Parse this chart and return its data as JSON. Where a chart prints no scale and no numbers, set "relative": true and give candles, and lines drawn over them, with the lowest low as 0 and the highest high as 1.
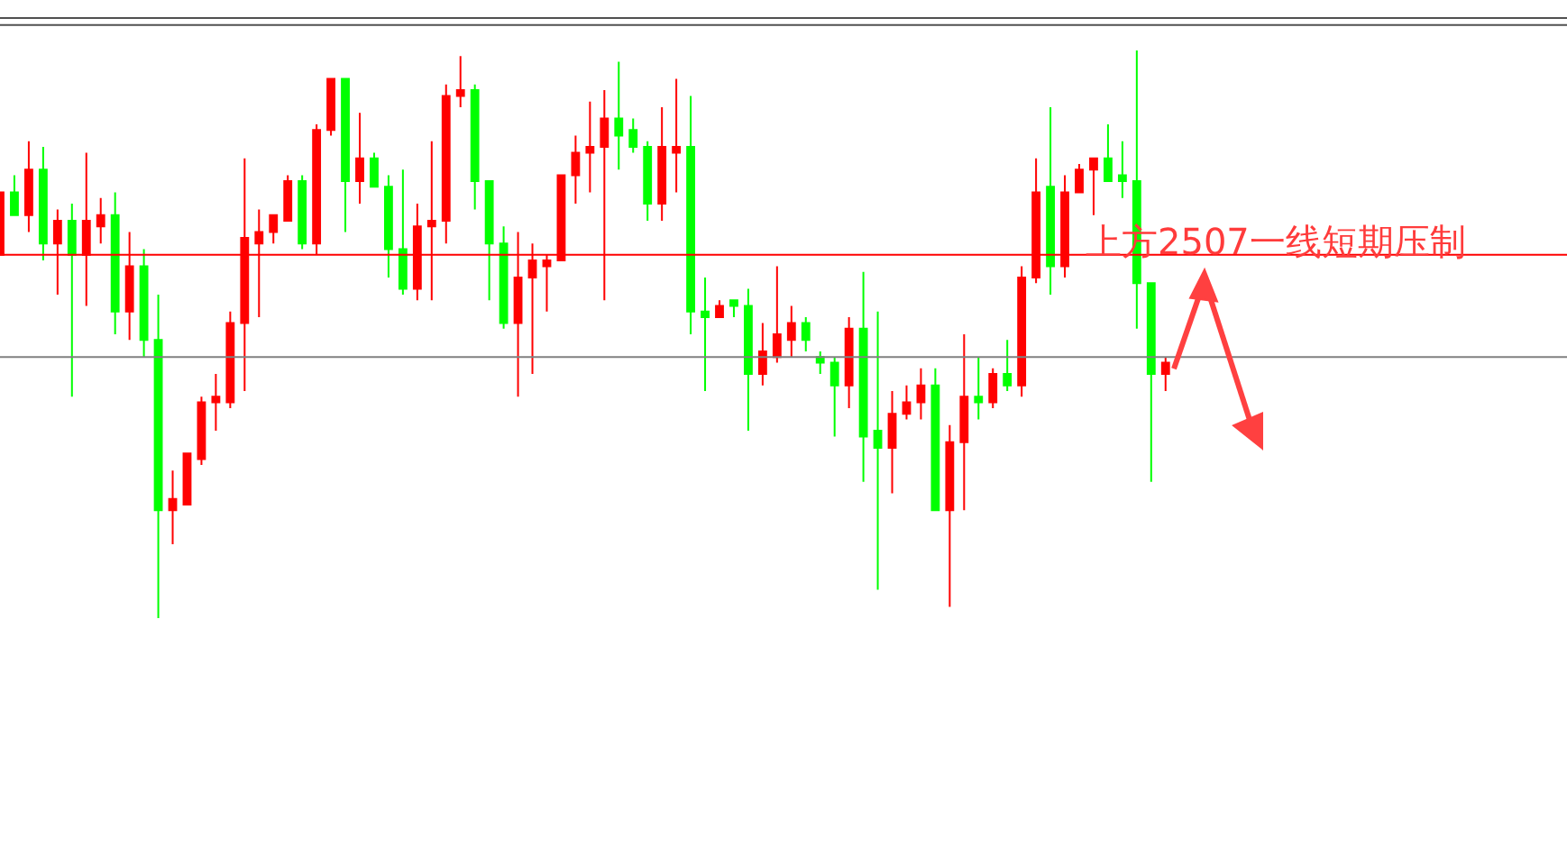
{
  "chart_data": {
    "type": "candlestick",
    "relative": true,
    "categories": [
      null,
      null,
      null,
      null,
      null,
      null,
      null,
      null,
      null,
      null,
      null,
      null,
      null,
      null,
      null,
      null,
      null,
      null,
      null,
      null,
      null,
      null,
      null,
      null,
      null,
      null,
      null,
      null,
      null,
      null,
      null,
      null,
      null,
      null,
      null,
      null,
      null,
      null,
      null,
      null,
      null,
      null,
      null,
      null,
      null,
      null,
      null,
      null,
      null,
      null,
      null,
      null,
      null,
      null,
      null,
      null,
      null,
      null,
      null,
      null,
      null,
      null,
      null,
      null,
      null,
      null,
      null,
      null,
      null,
      null,
      null,
      null,
      null,
      null,
      null,
      null,
      null,
      null,
      null,
      null,
      null,
      null
    ],
    "ohlc": [
      [
        0.64,
        0.75,
        0.64,
        0.75
      ],
      [
        0.75,
        0.78,
        0.71,
        0.71
      ],
      [
        0.71,
        0.84,
        0.68,
        0.79
      ],
      [
        0.79,
        0.83,
        0.63,
        0.66
      ],
      [
        0.66,
        0.72,
        0.57,
        0.7
      ],
      [
        0.7,
        0.73,
        0.39,
        0.64
      ],
      [
        0.64,
        0.82,
        0.55,
        0.7
      ],
      [
        0.69,
        0.74,
        0.66,
        0.71
      ],
      [
        0.71,
        0.75,
        0.5,
        0.54
      ],
      [
        0.54,
        0.68,
        0.49,
        0.62
      ],
      [
        0.62,
        0.65,
        0.46,
        0.49
      ],
      [
        0.49,
        0.57,
        0.0,
        0.19
      ],
      [
        0.19,
        0.26,
        0.13,
        0.21
      ],
      [
        0.2,
        0.29,
        0.2,
        0.29
      ],
      [
        0.28,
        0.39,
        0.27,
        0.38
      ],
      [
        0.38,
        0.43,
        0.33,
        0.39
      ],
      [
        0.38,
        0.54,
        0.37,
        0.52
      ],
      [
        0.52,
        0.81,
        0.4,
        0.67
      ],
      [
        0.66,
        0.72,
        0.53,
        0.68
      ],
      [
        0.68,
        0.71,
        0.66,
        0.71
      ],
      [
        0.7,
        0.78,
        0.7,
        0.77
      ],
      [
        0.77,
        0.78,
        0.65,
        0.66
      ],
      [
        0.66,
        0.87,
        0.64,
        0.86
      ],
      [
        0.86,
        0.95,
        0.85,
        0.95
      ],
      [
        0.95,
        0.95,
        0.68,
        0.77
      ],
      [
        0.77,
        0.89,
        0.73,
        0.81
      ],
      [
        0.81,
        0.82,
        0.76,
        0.76
      ],
      [
        0.76,
        0.78,
        0.6,
        0.65
      ],
      [
        0.65,
        0.79,
        0.57,
        0.58
      ],
      [
        0.58,
        0.73,
        0.56,
        0.69
      ],
      [
        0.69,
        0.84,
        0.56,
        0.7
      ],
      [
        0.7,
        0.94,
        0.66,
        0.92
      ],
      [
        0.92,
        0.99,
        0.9,
        0.93
      ],
      [
        0.93,
        0.94,
        0.72,
        0.77
      ],
      [
        0.77,
        0.77,
        0.56,
        0.66
      ],
      [
        0.66,
        0.69,
        0.51,
        0.52
      ],
      [
        0.52,
        0.68,
        0.39,
        0.6
      ],
      [
        0.6,
        0.66,
        0.43,
        0.63
      ],
      [
        0.62,
        0.64,
        0.54,
        0.63
      ],
      [
        0.63,
        0.78,
        0.63,
        0.78
      ],
      [
        0.78,
        0.85,
        0.73,
        0.82
      ],
      [
        0.82,
        0.91,
        0.75,
        0.83
      ],
      [
        0.83,
        0.93,
        0.56,
        0.88
      ],
      [
        0.88,
        0.98,
        0.79,
        0.85
      ],
      [
        0.86,
        0.88,
        0.82,
        0.83
      ],
      [
        0.83,
        0.84,
        0.7,
        0.73
      ],
      [
        0.73,
        0.9,
        0.7,
        0.83
      ],
      [
        0.82,
        0.95,
        0.75,
        0.83
      ],
      [
        0.83,
        0.92,
        0.5,
        0.54
      ],
      [
        0.54,
        0.6,
        0.4,
        0.53
      ],
      [
        0.53,
        0.56,
        0.53,
        0.55
      ],
      [
        0.56,
        0.56,
        0.53,
        0.55
      ],
      [
        0.55,
        0.58,
        0.33,
        0.43
      ],
      [
        0.43,
        0.52,
        0.41,
        0.47
      ],
      [
        0.46,
        0.62,
        0.45,
        0.5
      ],
      [
        0.49,
        0.55,
        0.46,
        0.52
      ],
      [
        0.52,
        0.53,
        0.47,
        0.49
      ],
      [
        0.46,
        0.47,
        0.43,
        0.45
      ],
      [
        0.45,
        0.46,
        0.32,
        0.41
      ],
      [
        0.41,
        0.53,
        0.37,
        0.51
      ],
      [
        0.51,
        0.61,
        0.24,
        0.32
      ],
      [
        0.33,
        0.54,
        0.05,
        0.3
      ],
      [
        0.3,
        0.4,
        0.22,
        0.36
      ],
      [
        0.36,
        0.41,
        0.35,
        0.38
      ],
      [
        0.38,
        0.44,
        0.35,
        0.41
      ],
      [
        0.41,
        0.44,
        0.19,
        0.19
      ],
      [
        0.19,
        0.34,
        0.02,
        0.31
      ],
      [
        0.31,
        0.5,
        0.19,
        0.39
      ],
      [
        0.39,
        0.46,
        0.35,
        0.38
      ],
      [
        0.38,
        0.44,
        0.37,
        0.43
      ],
      [
        0.43,
        0.49,
        0.4,
        0.41
      ],
      [
        0.41,
        0.62,
        0.39,
        0.6
      ],
      [
        0.6,
        0.81,
        0.59,
        0.75
      ],
      [
        0.76,
        0.9,
        0.57,
        0.62
      ],
      [
        0.62,
        0.78,
        0.6,
        0.75
      ],
      [
        0.75,
        0.8,
        0.75,
        0.79
      ],
      [
        0.79,
        0.81,
        0.71,
        0.81
      ],
      [
        0.81,
        0.87,
        0.77,
        0.77
      ],
      [
        0.78,
        0.84,
        0.74,
        0.77
      ],
      [
        0.77,
        1.0,
        0.51,
        0.59
      ],
      [
        0.59,
        0.59,
        0.24,
        0.43
      ],
      [
        0.43,
        0.46,
        0.4,
        0.45
      ]
    ],
    "colors": [
      "#ff0000",
      "#00ff00",
      "#ff0000",
      "#00ff00",
      "#ff0000",
      "#00ff00",
      "#ff0000",
      "#ff0000",
      "#00ff00",
      "#ff0000",
      "#00ff00",
      "#00ff00",
      "#ff0000",
      "#ff0000",
      "#ff0000",
      "#ff0000",
      "#ff0000",
      "#ff0000",
      "#ff0000",
      "#ff0000",
      "#ff0000",
      "#00ff00",
      "#ff0000",
      "#ff0000",
      "#00ff00",
      "#ff0000",
      "#00ff00",
      "#00ff00",
      "#00ff00",
      "#ff0000",
      "#ff0000",
      "#ff0000",
      "#ff0000",
      "#00ff00",
      "#00ff00",
      "#00ff00",
      "#ff0000",
      "#ff0000",
      "#ff0000",
      "#ff0000",
      "#ff0000",
      "#ff0000",
      "#ff0000",
      "#00ff00",
      "#00ff00",
      "#00ff00",
      "#ff0000",
      "#ff0000",
      "#00ff00",
      "#00ff00",
      "#ff0000",
      "#00ff00",
      "#00ff00",
      "#ff0000",
      "#ff0000",
      "#ff0000",
      "#00ff00",
      "#00ff00",
      "#00ff00",
      "#ff0000",
      "#00ff00",
      "#00ff00",
      "#ff0000",
      "#ff0000",
      "#ff0000",
      "#00ff00",
      "#ff0000",
      "#ff0000",
      "#00ff00",
      "#ff0000",
      "#00ff00",
      "#ff0000",
      "#ff0000",
      "#00ff00",
      "#ff0000",
      "#ff0000",
      "#ff0000",
      "#00ff00",
      "#00ff00",
      "#00ff00",
      "#00ff00",
      "#ff0000"
    ],
    "ref_lines": [
      {
        "axis": "y",
        "value": 0.64,
        "color": "#ff0000"
      },
      {
        "axis": "y",
        "value": 0.46,
        "color": "#808080"
      }
    ],
    "annotations": [
      "上方2507一线短期压制"
    ]
  }
}
